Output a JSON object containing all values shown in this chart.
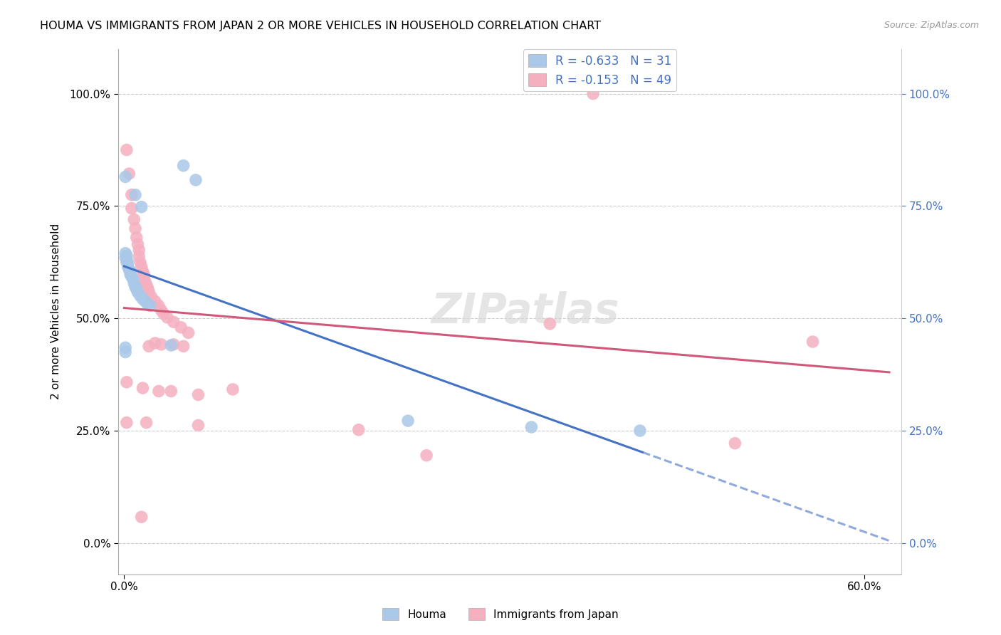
{
  "title": "HOUMA VS IMMIGRANTS FROM JAPAN 2 OR MORE VEHICLES IN HOUSEHOLD CORRELATION CHART",
  "source": "Source: ZipAtlas.com",
  "xlim": [
    -0.005,
    0.63
  ],
  "ylim": [
    -0.07,
    1.1
  ],
  "xtick_vals": [
    0.0,
    0.6
  ],
  "xtick_labels": [
    "0.0%",
    "60.0%"
  ],
  "ytick_vals": [
    0.0,
    0.25,
    0.5,
    0.75,
    1.0
  ],
  "ytick_labels": [
    "0.0%",
    "25.0%",
    "50.0%",
    "75.0%",
    "100.0%"
  ],
  "houma_R": "-0.633",
  "houma_N": "31",
  "japan_R": "-0.153",
  "japan_N": "49",
  "houma_scatter_color": "#aac8e8",
  "japan_scatter_color": "#f5b0c0",
  "houma_line_color": "#4472c4",
  "japan_line_color": "#d05878",
  "watermark": "ZIPatlas",
  "legend_labels": [
    "Houma",
    "Immigrants from Japan"
  ],
  "houma_x": [
    0.001,
    0.001,
    0.002,
    0.002,
    0.003,
    0.003,
    0.004,
    0.005,
    0.005,
    0.006,
    0.007,
    0.008,
    0.009,
    0.01,
    0.011,
    0.013,
    0.015,
    0.017,
    0.019,
    0.021,
    0.001,
    0.001,
    0.038,
    0.048,
    0.058,
    0.009,
    0.014,
    0.001,
    0.23,
    0.33,
    0.418
  ],
  "houma_y": [
    0.635,
    0.645,
    0.64,
    0.625,
    0.625,
    0.615,
    0.608,
    0.605,
    0.598,
    0.593,
    0.588,
    0.578,
    0.57,
    0.565,
    0.558,
    0.55,
    0.543,
    0.538,
    0.532,
    0.528,
    0.435,
    0.425,
    0.44,
    0.84,
    0.808,
    0.775,
    0.748,
    0.815,
    0.272,
    0.258,
    0.25
  ],
  "japan_x": [
    0.38,
    0.002,
    0.004,
    0.006,
    0.006,
    0.008,
    0.009,
    0.01,
    0.011,
    0.012,
    0.012,
    0.013,
    0.014,
    0.015,
    0.016,
    0.016,
    0.017,
    0.018,
    0.019,
    0.02,
    0.022,
    0.025,
    0.028,
    0.03,
    0.032,
    0.035,
    0.04,
    0.046,
    0.052,
    0.02,
    0.025,
    0.03,
    0.04,
    0.048,
    0.002,
    0.015,
    0.028,
    0.038,
    0.06,
    0.002,
    0.018,
    0.06,
    0.19,
    0.245,
    0.345,
    0.558,
    0.014,
    0.495,
    0.088
  ],
  "japan_y": [
    1.0,
    0.875,
    0.822,
    0.775,
    0.745,
    0.72,
    0.7,
    0.68,
    0.665,
    0.652,
    0.638,
    0.625,
    0.615,
    0.605,
    0.598,
    0.59,
    0.582,
    0.575,
    0.568,
    0.56,
    0.548,
    0.538,
    0.528,
    0.518,
    0.51,
    0.502,
    0.492,
    0.48,
    0.468,
    0.438,
    0.445,
    0.442,
    0.442,
    0.438,
    0.358,
    0.345,
    0.338,
    0.338,
    0.33,
    0.268,
    0.268,
    0.262,
    0.252,
    0.195,
    0.488,
    0.448,
    0.058,
    0.222,
    0.342
  ]
}
